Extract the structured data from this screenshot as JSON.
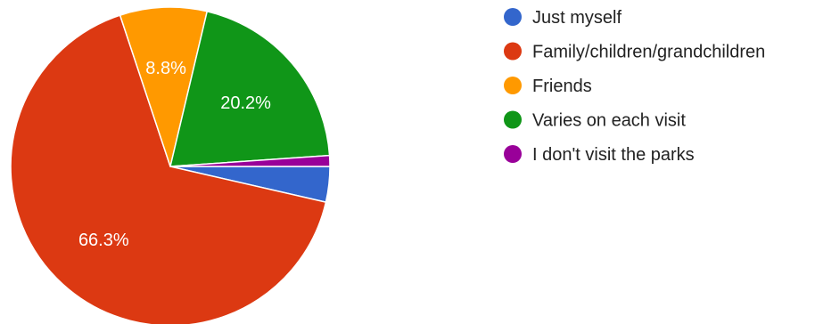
{
  "chart_data": {
    "type": "pie",
    "slices": [
      {
        "label": "Just myself",
        "value": 3.6,
        "display": "",
        "color": "#3366cc"
      },
      {
        "label": "Family/children/grandchildren",
        "value": 66.3,
        "display": "66.3%",
        "color": "#dc3912"
      },
      {
        "label": "Friends",
        "value": 8.8,
        "display": "8.8%",
        "color": "#ff9900"
      },
      {
        "label": "Varies on each visit",
        "value": 20.2,
        "display": "20.2%",
        "color": "#109618"
      },
      {
        "label": "I don't visit the parks",
        "value": 1.1,
        "display": "",
        "color": "#990099"
      }
    ],
    "legend_position": "right"
  }
}
